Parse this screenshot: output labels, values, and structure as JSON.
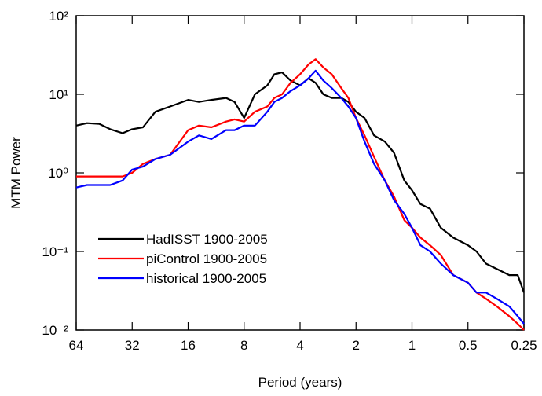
{
  "chart_data": {
    "type": "line",
    "xlabel": "Period (years)",
    "ylabel": "MTM Power",
    "xscale": "log",
    "yscale": "log",
    "xlim": [
      64,
      0.25
    ],
    "ylim": [
      0.01,
      100
    ],
    "xticks": [
      64,
      32,
      16,
      8,
      4,
      2,
      1,
      0.5,
      0.25
    ],
    "yticks": [
      {
        "value": 0.01,
        "label": "10⁻²"
      },
      {
        "value": 0.1,
        "label": "10⁻¹"
      },
      {
        "value": 1,
        "label": "10⁰"
      },
      {
        "value": 10,
        "label": "10¹"
      },
      {
        "value": 100,
        "label": "10²"
      }
    ],
    "legend": "lower left",
    "x": [
      64,
      56,
      48,
      42,
      36,
      32,
      28,
      24,
      20,
      16,
      14,
      12,
      10,
      9,
      8,
      7,
      6,
      5.5,
      5,
      4.5,
      4,
      3.6,
      3.3,
      3,
      2.7,
      2.4,
      2.2,
      2,
      1.8,
      1.6,
      1.4,
      1.25,
      1.1,
      1,
      0.9,
      0.8,
      0.7,
      0.6,
      0.5,
      0.45,
      0.4,
      0.35,
      0.3,
      0.27,
      0.25
    ],
    "series": [
      {
        "name": "HadISST 1900-2005",
        "color": "#000000",
        "values": [
          4.0,
          4.3,
          4.2,
          3.6,
          3.2,
          3.6,
          3.8,
          6,
          7,
          8.5,
          8,
          8.5,
          9,
          8,
          5,
          10,
          13,
          18,
          19,
          15,
          13,
          16,
          14,
          10,
          9,
          9,
          8,
          6,
          5,
          3,
          2.5,
          1.8,
          0.8,
          0.6,
          0.4,
          0.35,
          0.2,
          0.15,
          0.12,
          0.1,
          0.07,
          0.06,
          0.05,
          0.05,
          0.03
        ]
      },
      {
        "name": "piControl 1900-2005",
        "color": "#ff0000",
        "values": [
          0.9,
          0.9,
          0.9,
          0.9,
          0.9,
          1.0,
          1.3,
          1.5,
          1.7,
          3.5,
          4,
          3.8,
          4.5,
          4.8,
          4.5,
          6,
          7,
          9,
          10,
          14,
          18,
          24,
          28,
          22,
          18,
          12,
          9,
          5,
          3,
          1.6,
          0.8,
          0.5,
          0.25,
          0.2,
          0.15,
          0.12,
          0.09,
          0.05,
          0.04,
          0.03,
          0.025,
          0.02,
          0.015,
          0.012,
          0.01
        ]
      },
      {
        "name": "historical 1900-2005",
        "color": "#0000ff",
        "values": [
          0.65,
          0.7,
          0.7,
          0.7,
          0.8,
          1.1,
          1.2,
          1.5,
          1.7,
          2.5,
          3,
          2.7,
          3.5,
          3.5,
          4,
          4,
          6,
          8,
          9,
          11,
          13,
          16,
          20,
          15,
          12,
          9,
          7,
          5,
          2.5,
          1.3,
          0.8,
          0.45,
          0.3,
          0.2,
          0.12,
          0.1,
          0.07,
          0.05,
          0.04,
          0.03,
          0.03,
          0.025,
          0.02,
          0.015,
          0.012
        ]
      }
    ]
  }
}
